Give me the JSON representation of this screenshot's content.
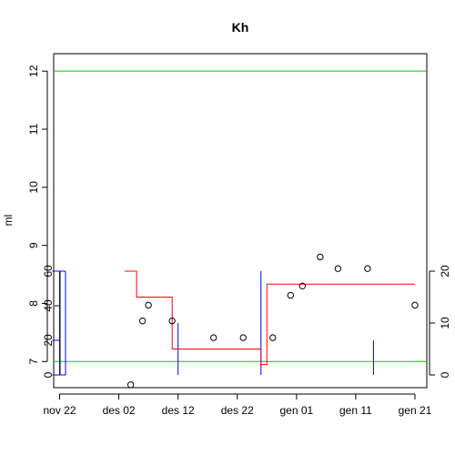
{
  "chart_data": {
    "type": "scatter",
    "title": "Kh",
    "xlabel": "",
    "ylabel": "ml",
    "x_axis_type": "date",
    "xlim": [
      "2019-11-21",
      "2020-01-23"
    ],
    "ylim": [
      6.55,
      12.3
    ],
    "x_ticks": [
      {
        "date": "2019-11-22",
        "label": "nov 22"
      },
      {
        "date": "2019-12-02",
        "label": "des 02"
      },
      {
        "date": "2019-12-12",
        "label": "des 12"
      },
      {
        "date": "2019-12-22",
        "label": "des 22"
      },
      {
        "date": "2020-01-01",
        "label": "gen 01"
      },
      {
        "date": "2020-01-11",
        "label": "gen 11"
      },
      {
        "date": "2020-01-21",
        "label": "gen 21"
      }
    ],
    "y_ticks": [
      7,
      8,
      9,
      10,
      11,
      12
    ],
    "reference_lines": [
      {
        "y": 12,
        "color": "#00cc00"
      },
      {
        "y": 7,
        "color": "#00cc00"
      }
    ],
    "points": [
      {
        "date": "2019-12-04",
        "y": 6.6
      },
      {
        "date": "2019-12-06",
        "y": 7.7
      },
      {
        "date": "2019-12-07",
        "y": 7.97
      },
      {
        "date": "2019-12-11",
        "y": 7.7
      },
      {
        "date": "2019-12-18",
        "y": 7.41
      },
      {
        "date": "2019-12-23",
        "y": 7.41
      },
      {
        "date": "2019-12-28",
        "y": 7.41
      },
      {
        "date": "2019-12-31",
        "y": 8.14
      },
      {
        "date": "2020-01-02",
        "y": 8.3
      },
      {
        "date": "2020-01-05",
        "y": 8.8
      },
      {
        "date": "2020-01-08",
        "y": 8.6
      },
      {
        "date": "2020-01-13",
        "y": 8.6
      },
      {
        "date": "2020-01-21",
        "y": 7.97
      }
    ],
    "left_axis_2": {
      "ticks": [
        0,
        20,
        40,
        60
      ],
      "range": [
        0,
        60
      ],
      "color": "#0000ff"
    },
    "right_axis": {
      "ticks": [
        0,
        10,
        20
      ],
      "range": [
        0,
        20
      ],
      "color": "#ff0000"
    },
    "blue_bars": [
      {
        "date": "2019-11-22",
        "value": 60
      },
      {
        "date": "2019-11-23",
        "value": 60
      },
      {
        "date": "2019-12-12",
        "value": 30
      },
      {
        "date": "2019-12-26",
        "value": 60
      },
      {
        "date": "2020-01-14",
        "value": 20
      }
    ],
    "red_steps": [
      {
        "date": "2019-12-03",
        "value": 20
      },
      {
        "date": "2019-12-05",
        "value": 20
      },
      {
        "date": "2019-12-05",
        "value": 15
      },
      {
        "date": "2019-12-11",
        "value": 15
      },
      {
        "date": "2019-12-11",
        "value": 5
      },
      {
        "date": "2019-12-26",
        "value": 5
      },
      {
        "date": "2019-12-26",
        "value": 2
      },
      {
        "date": "2019-12-27",
        "value": 2
      },
      {
        "date": "2019-12-27",
        "value": 17.5
      },
      {
        "date": "2020-01-21",
        "value": 17.5
      }
    ],
    "colors": {
      "points": "#000000",
      "reference": "#00cc00",
      "blue": "#0000ff",
      "red": "#ff0000"
    }
  }
}
